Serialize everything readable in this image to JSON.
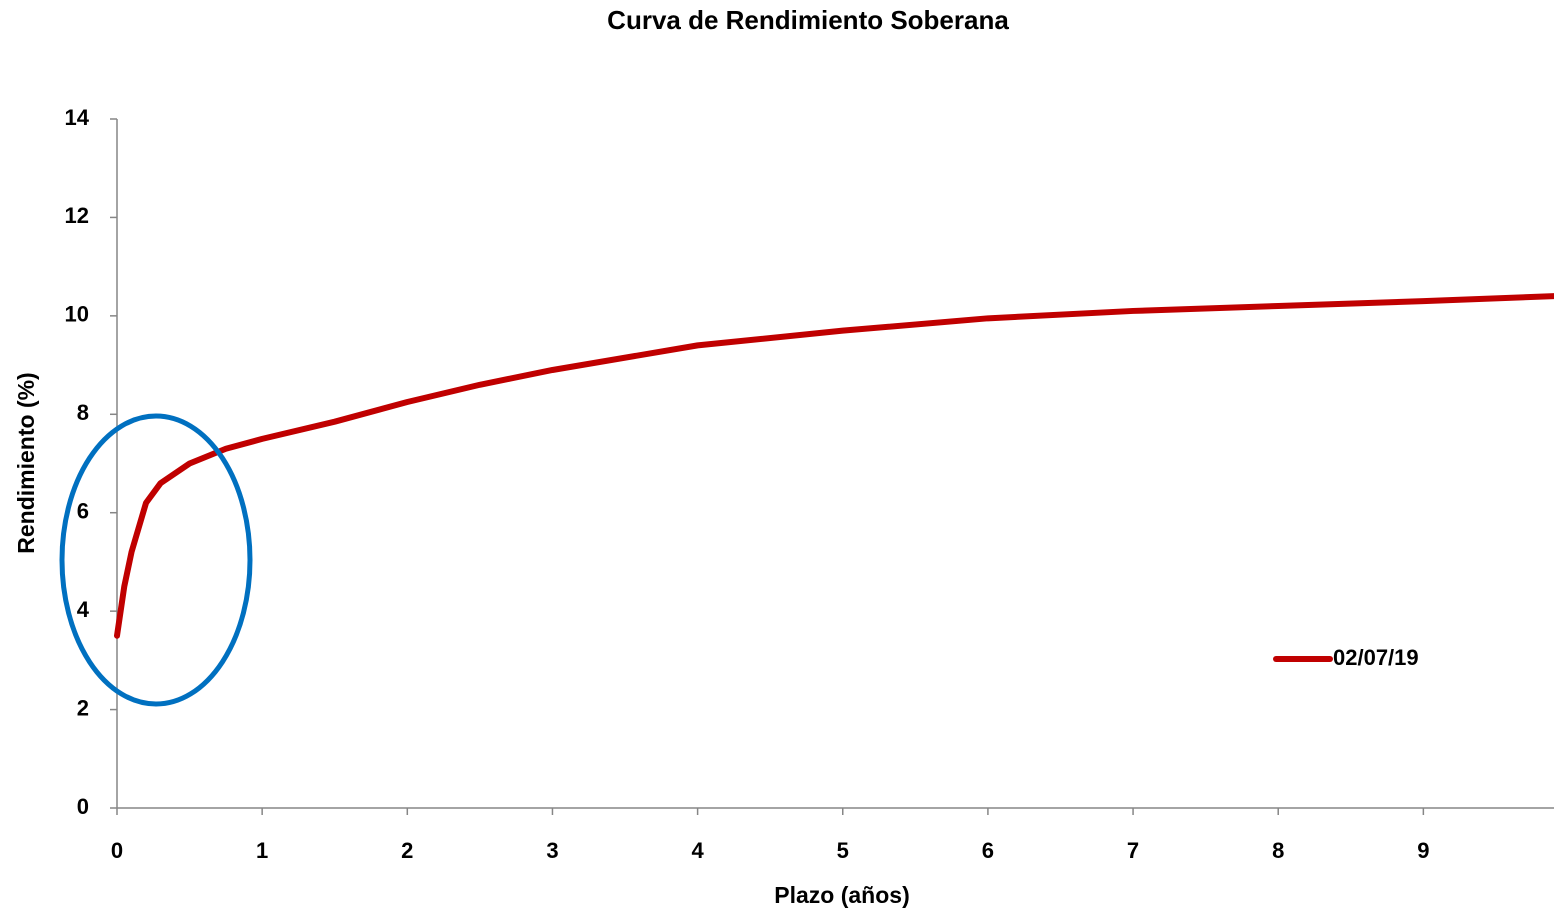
{
  "chart_data": {
    "type": "line",
    "title": "Curva de Rendimiento Soberana",
    "xlabel": "Plazo (años)",
    "ylabel": "Rendimiento (%)",
    "x": [
      0,
      0.05,
      0.1,
      0.2,
      0.3,
      0.5,
      0.75,
      1,
      1.5,
      2,
      2.5,
      3,
      4,
      5,
      6,
      7,
      8,
      9,
      9.9
    ],
    "series": [
      {
        "name": "02/07/19",
        "color": "#c00000",
        "values": [
          3.5,
          4.5,
          5.2,
          6.2,
          6.6,
          7.0,
          7.3,
          7.5,
          7.85,
          8.25,
          8.6,
          8.9,
          9.4,
          9.7,
          9.95,
          10.1,
          10.2,
          10.3,
          10.4
        ]
      }
    ],
    "xlim": [
      0,
      9.9
    ],
    "xticks": [
      0,
      1,
      2,
      3,
      4,
      5,
      6,
      7,
      8,
      9
    ],
    "ylim": [
      0,
      14
    ],
    "yticks": [
      0,
      2,
      4,
      6,
      8,
      10,
      12,
      14
    ],
    "grid": false,
    "legend": "right"
  }
}
